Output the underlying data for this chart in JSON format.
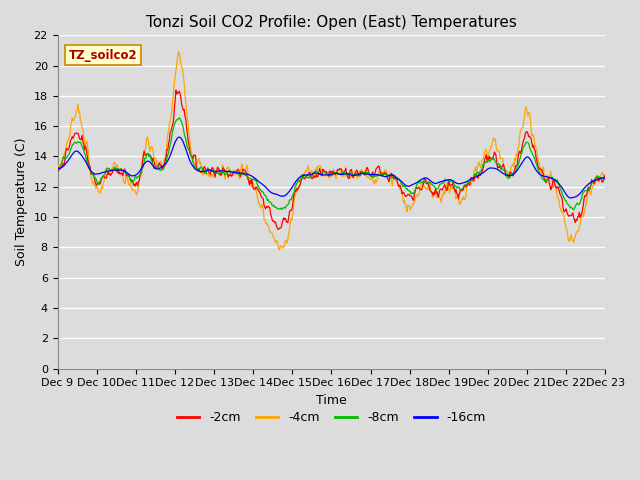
{
  "title": "Tonzi Soil CO2 Profile: Open (East) Temperatures",
  "ylabel": "Soil Temperature (C)",
  "xlabel": "Time",
  "watermark": "TZ_soilco2",
  "ylim": [
    0,
    22
  ],
  "yticks": [
    0,
    2,
    4,
    6,
    8,
    10,
    12,
    14,
    16,
    18,
    20,
    22
  ],
  "xtick_labels": [
    "Dec 9",
    "Dec 10",
    "Dec 11",
    "Dec 12",
    "Dec 13",
    "Dec 14",
    "Dec 15",
    "Dec 16",
    "Dec 17",
    "Dec 18",
    "Dec 19",
    "Dec 20",
    "Dec 21",
    "Dec 22",
    "Dec 23"
  ],
  "series_colors": [
    "#ff0000",
    "#ffa500",
    "#00bb00",
    "#0000ff"
  ],
  "series_labels": [
    "-2cm",
    "-4cm",
    "-8cm",
    "-16cm"
  ],
  "background_color": "#dcdcdc",
  "plot_bg_color": "#dcdcdc",
  "grid_color": "#ffffff",
  "title_fontsize": 11,
  "axis_label_fontsize": 9,
  "tick_fontsize": 8
}
